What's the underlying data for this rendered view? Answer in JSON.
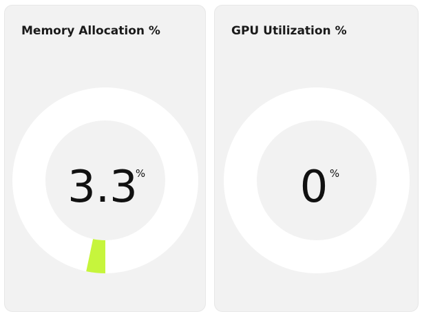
{
  "accent_color": "#c6f53c",
  "ring_color": "#ffffff",
  "panels": [
    {
      "title": "Memory Allocation %",
      "value": "3.3",
      "unit": "%",
      "fraction": 0.033
    },
    {
      "title": "GPU Utilization %",
      "value": "0",
      "unit": "%",
      "fraction": 0
    }
  ]
}
